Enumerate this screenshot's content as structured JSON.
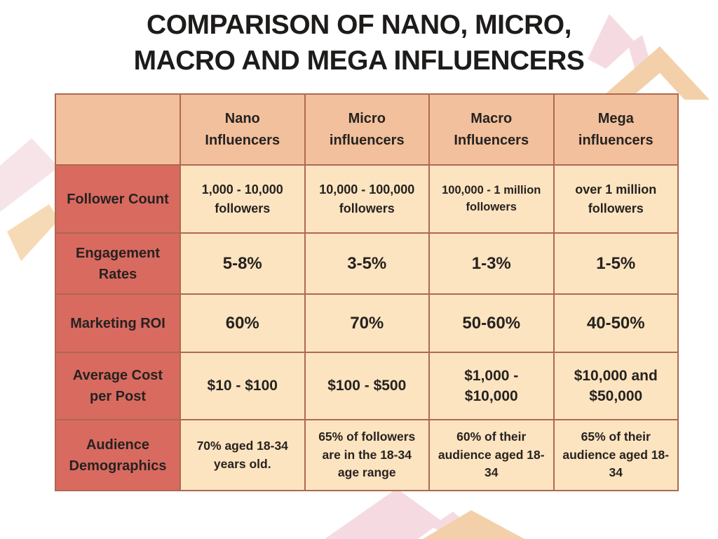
{
  "page": {
    "title_line1": "COMPARISON OF NANO, MICRO,",
    "title_line2": "MACRO AND MEGA INFLUENCERS"
  },
  "colors": {
    "header_bg": "#f2c09c",
    "row_header_bg": "#d96a60",
    "cell_bg": "#fde4c0",
    "border": "#ad6950",
    "title_text": "#1d1c1b",
    "cell_text": "#262220",
    "row_header_text": "#faf0dd",
    "decor_pink": "#f5dbe1",
    "decor_peach": "#f3d0a9"
  },
  "chart_data": {
    "type": "table",
    "title": "Comparison of Nano, Micro, Macro and Mega Influencers",
    "columns": [
      "",
      "Nano Influencers",
      "Micro influencers",
      "Macro Influencers",
      "Mega influencers"
    ],
    "rows": [
      [
        "Follower Count",
        "1,000 - 10,000 followers",
        "10,000 - 100,000 followers",
        "100,000 - 1 million followers",
        "over 1 million followers"
      ],
      [
        "Engagement Rates",
        "5-8%",
        "3-5%",
        "1-3%",
        "1-5%"
      ],
      [
        "Marketing ROI",
        "60%",
        "70%",
        "50-60%",
        "40-50%"
      ],
      [
        "Average Cost per Post",
        "$10 - $100",
        "$100 - $500",
        "$1,000 - $10,000",
        "$10,000 and $50,000"
      ],
      [
        "Audience Demographics",
        "70% aged 18-34 years old.",
        "65% of followers are in the 18-34 age range",
        "60% of their audience aged 18-34",
        "65% of their audience aged 18-34"
      ]
    ]
  }
}
